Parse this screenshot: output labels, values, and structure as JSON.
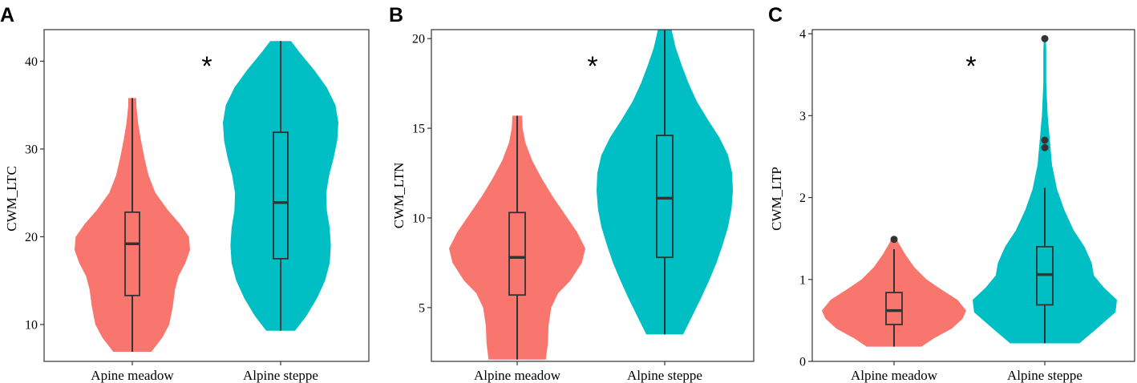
{
  "figure": {
    "colors": {
      "meadow": "#F8766D",
      "steppe": "#00BFC4",
      "box_stroke": "#333333",
      "panel_border": "#333333"
    }
  },
  "chart_data": [
    {
      "type": "violin",
      "panel_label": "A",
      "ylabel": "CWM_LTC",
      "xlabel": "",
      "ylim": [
        5.8,
        43.6
      ],
      "yticks": [
        10,
        20,
        30,
        40
      ],
      "categories": [
        "Apine meadow",
        "Alpine steppe"
      ],
      "significance": "*",
      "grid": false,
      "groups": [
        {
          "category": "Apine meadow",
          "color": "#F8766D",
          "min": 6.9,
          "q1": 13.3,
          "median": 19.2,
          "q3": 22.8,
          "max": 35.8,
          "outliers": [],
          "density": [
            [
              6.9,
              0.33
            ],
            [
              8.5,
              0.52
            ],
            [
              10.0,
              0.64
            ],
            [
              12.0,
              0.7
            ],
            [
              14.0,
              0.74
            ],
            [
              15.5,
              0.8
            ],
            [
              17.0,
              0.92
            ],
            [
              18.5,
              1.0
            ],
            [
              20.0,
              0.98
            ],
            [
              21.5,
              0.82
            ],
            [
              23.0,
              0.62
            ],
            [
              25.0,
              0.4
            ],
            [
              27.0,
              0.28
            ],
            [
              29.0,
              0.21
            ],
            [
              31.0,
              0.15
            ],
            [
              33.0,
              0.1
            ],
            [
              35.0,
              0.07
            ],
            [
              35.8,
              0.07
            ]
          ]
        },
        {
          "category": "Alpine steppe",
          "color": "#00BFC4",
          "min": 9.3,
          "q1": 17.5,
          "median": 23.9,
          "q3": 31.9,
          "max": 42.3,
          "outliers": [],
          "density": [
            [
              9.3,
              0.25
            ],
            [
              11.0,
              0.45
            ],
            [
              13.0,
              0.63
            ],
            [
              15.0,
              0.77
            ],
            [
              17.0,
              0.85
            ],
            [
              19.0,
              0.87
            ],
            [
              21.0,
              0.85
            ],
            [
              23.0,
              0.8
            ],
            [
              25.0,
              0.79
            ],
            [
              27.0,
              0.84
            ],
            [
              29.0,
              0.92
            ],
            [
              31.0,
              0.98
            ],
            [
              33.0,
              1.0
            ],
            [
              35.0,
              0.95
            ],
            [
              37.0,
              0.8
            ],
            [
              39.0,
              0.58
            ],
            [
              41.0,
              0.33
            ],
            [
              42.3,
              0.18
            ]
          ]
        }
      ]
    },
    {
      "type": "violin",
      "panel_label": "B",
      "ylabel": "CWM_LTN",
      "xlabel": "",
      "ylim": [
        2.0,
        20.5
      ],
      "yticks": [
        5,
        10,
        15,
        20
      ],
      "categories": [
        "Alpine meadow",
        "Alpine steppe"
      ],
      "significance": "*",
      "grid": false,
      "groups": [
        {
          "category": "Alpine meadow",
          "color": "#F8766D",
          "min": 2.1,
          "q1": 5.7,
          "median": 7.8,
          "q3": 10.3,
          "max": 15.7,
          "outliers": [],
          "density": [
            [
              2.1,
              0.42
            ],
            [
              3.0,
              0.45
            ],
            [
              4.0,
              0.46
            ],
            [
              5.0,
              0.5
            ],
            [
              5.8,
              0.6
            ],
            [
              6.5,
              0.78
            ],
            [
              7.5,
              0.95
            ],
            [
              8.3,
              1.0
            ],
            [
              9.2,
              0.88
            ],
            [
              10.2,
              0.7
            ],
            [
              11.2,
              0.52
            ],
            [
              12.2,
              0.36
            ],
            [
              13.2,
              0.22
            ],
            [
              14.2,
              0.12
            ],
            [
              15.0,
              0.08
            ],
            [
              15.7,
              0.07
            ]
          ]
        },
        {
          "category": "Alpine steppe",
          "color": "#00BFC4",
          "min": 3.5,
          "q1": 7.8,
          "median": 11.1,
          "q3": 14.6,
          "max": 20.5,
          "outliers": [],
          "density": [
            [
              3.5,
              0.27
            ],
            [
              4.5,
              0.4
            ],
            [
              5.5,
              0.53
            ],
            [
              6.5,
              0.65
            ],
            [
              7.5,
              0.76
            ],
            [
              8.5,
              0.85
            ],
            [
              9.5,
              0.93
            ],
            [
              10.5,
              0.98
            ],
            [
              11.5,
              1.0
            ],
            [
              12.5,
              0.99
            ],
            [
              13.5,
              0.93
            ],
            [
              14.5,
              0.8
            ],
            [
              15.5,
              0.63
            ],
            [
              16.5,
              0.47
            ],
            [
              17.5,
              0.35
            ],
            [
              18.5,
              0.25
            ],
            [
              19.5,
              0.16
            ],
            [
              20.5,
              0.1
            ]
          ]
        }
      ]
    },
    {
      "type": "violin",
      "panel_label": "C",
      "ylabel": "CWM_LTP",
      "xlabel": "",
      "ylim": [
        0.0,
        4.05
      ],
      "yticks": [
        0,
        1,
        2,
        3,
        4
      ],
      "categories": [
        "Alpine meadow",
        "Alpine steppe"
      ],
      "significance": "*",
      "grid": false,
      "groups": [
        {
          "category": "Alpine meadow",
          "color": "#F8766D",
          "min": 0.18,
          "q1": 0.45,
          "median": 0.62,
          "q3": 0.84,
          "max": 1.37,
          "outliers": [
            1.49
          ],
          "density": [
            [
              0.18,
              0.38
            ],
            [
              0.28,
              0.55
            ],
            [
              0.4,
              0.8
            ],
            [
              0.52,
              0.95
            ],
            [
              0.62,
              1.0
            ],
            [
              0.75,
              0.88
            ],
            [
              0.88,
              0.65
            ],
            [
              1.0,
              0.45
            ],
            [
              1.15,
              0.28
            ],
            [
              1.3,
              0.16
            ],
            [
              1.45,
              0.06
            ],
            [
              1.49,
              0.04
            ]
          ]
        },
        {
          "category": "Alpine steppe",
          "color": "#00BFC4",
          "min": 0.22,
          "q1": 0.69,
          "median": 1.06,
          "q3": 1.4,
          "max": 2.12,
          "outliers": [
            2.61,
            2.7,
            3.94
          ],
          "density": [
            [
              0.22,
              0.48
            ],
            [
              0.4,
              0.72
            ],
            [
              0.6,
              0.98
            ],
            [
              0.75,
              1.0
            ],
            [
              0.9,
              0.82
            ],
            [
              1.05,
              0.68
            ],
            [
              1.2,
              0.65
            ],
            [
              1.4,
              0.55
            ],
            [
              1.6,
              0.4
            ],
            [
              1.85,
              0.27
            ],
            [
              2.1,
              0.17
            ],
            [
              2.4,
              0.1
            ],
            [
              2.7,
              0.07
            ],
            [
              3.0,
              0.04
            ],
            [
              3.4,
              0.02
            ],
            [
              3.8,
              0.02
            ],
            [
              3.94,
              0.015
            ]
          ]
        }
      ]
    }
  ]
}
